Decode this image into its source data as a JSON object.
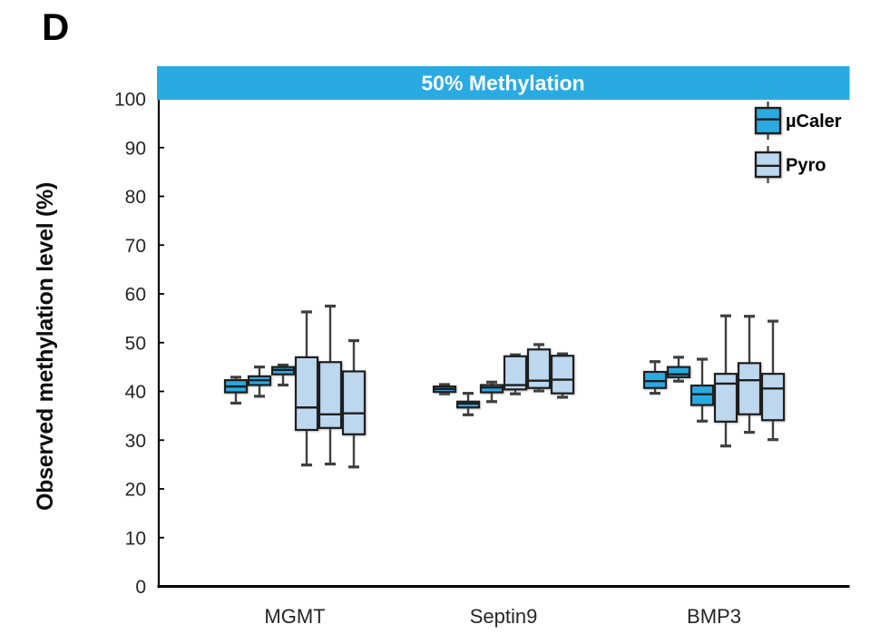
{
  "page": {
    "panel_label": "D"
  },
  "colors": {
    "banner": "#29ABE2",
    "banner_text": "#FFFFFF",
    "mcaler_fill": "#29ABE2",
    "pyro_fill": "#BDD7EE",
    "box_border": "#1E1E1E",
    "whisker": "#3F3F3F",
    "axis": "#000000",
    "tick_text": "#262626"
  },
  "chart_data": {
    "type": "boxplot",
    "title": "50% Methylation",
    "xlabel": "",
    "ylabel": "Observed methylation level (%)",
    "ylim": [
      0,
      100
    ],
    "yticks": [
      0,
      10,
      20,
      30,
      40,
      50,
      60,
      70,
      80,
      90,
      100
    ],
    "grid": false,
    "legend_position": "top-right",
    "categories": [
      "MGMT",
      "Septin9",
      "BMP3"
    ],
    "series": [
      {
        "name": "µCaler",
        "color": "#29ABE2"
      },
      {
        "name": "Pyro",
        "color": "#BDD7EE"
      }
    ],
    "groups": [
      {
        "label": "MGMT",
        "boxes": [
          {
            "series": "µCaler",
            "low": 37.6,
            "q1": 39.8,
            "median": 41.0,
            "q3": 42.3,
            "high": 42.9
          },
          {
            "series": "µCaler",
            "low": 39.0,
            "q1": 41.3,
            "median": 42.3,
            "q3": 43.1,
            "high": 45.0
          },
          {
            "series": "µCaler",
            "low": 41.3,
            "q1": 43.5,
            "median": 44.4,
            "q3": 45.0,
            "high": 45.4
          },
          {
            "series": "Pyro",
            "low": 24.9,
            "q1": 32.1,
            "median": 36.7,
            "q3": 47.0,
            "high": 56.3
          },
          {
            "series": "Pyro",
            "low": 25.1,
            "q1": 32.5,
            "median": 35.3,
            "q3": 46.0,
            "high": 57.5
          },
          {
            "series": "Pyro",
            "low": 24.5,
            "q1": 31.2,
            "median": 35.5,
            "q3": 44.1,
            "high": 50.4
          }
        ]
      },
      {
        "label": "Septin9",
        "boxes": [
          {
            "series": "µCaler",
            "low": 39.5,
            "q1": 39.9,
            "median": 40.5,
            "q3": 41.0,
            "high": 41.4
          },
          {
            "series": "µCaler",
            "low": 35.2,
            "q1": 36.7,
            "median": 37.5,
            "q3": 37.9,
            "high": 39.6
          },
          {
            "series": "µCaler",
            "low": 37.9,
            "q1": 39.8,
            "median": 40.8,
            "q3": 41.3,
            "high": 41.9
          },
          {
            "series": "Pyro",
            "low": 39.5,
            "q1": 40.4,
            "median": 41.3,
            "q3": 47.2,
            "high": 47.5
          },
          {
            "series": "Pyro",
            "low": 40.1,
            "q1": 40.7,
            "median": 42.2,
            "q3": 48.6,
            "high": 49.6
          },
          {
            "series": "Pyro",
            "low": 38.8,
            "q1": 39.6,
            "median": 42.4,
            "q3": 47.3,
            "high": 47.7
          }
        ]
      },
      {
        "label": "BMP3",
        "boxes": [
          {
            "series": "µCaler",
            "low": 39.6,
            "q1": 40.7,
            "median": 42.1,
            "q3": 44.0,
            "high": 46.1
          },
          {
            "series": "µCaler",
            "low": 42.1,
            "q1": 42.9,
            "median": 43.5,
            "q3": 45.0,
            "high": 47.0
          },
          {
            "series": "µCaler",
            "low": 33.9,
            "q1": 37.2,
            "median": 39.4,
            "q3": 41.2,
            "high": 46.6
          },
          {
            "series": "Pyro",
            "low": 28.8,
            "q1": 33.8,
            "median": 41.6,
            "q3": 43.6,
            "high": 55.5
          },
          {
            "series": "Pyro",
            "low": 31.6,
            "q1": 35.3,
            "median": 42.3,
            "q3": 45.8,
            "high": 55.4
          },
          {
            "series": "Pyro",
            "low": 30.1,
            "q1": 34.1,
            "median": 40.6,
            "q3": 43.6,
            "high": 54.4
          }
        ]
      }
    ]
  }
}
